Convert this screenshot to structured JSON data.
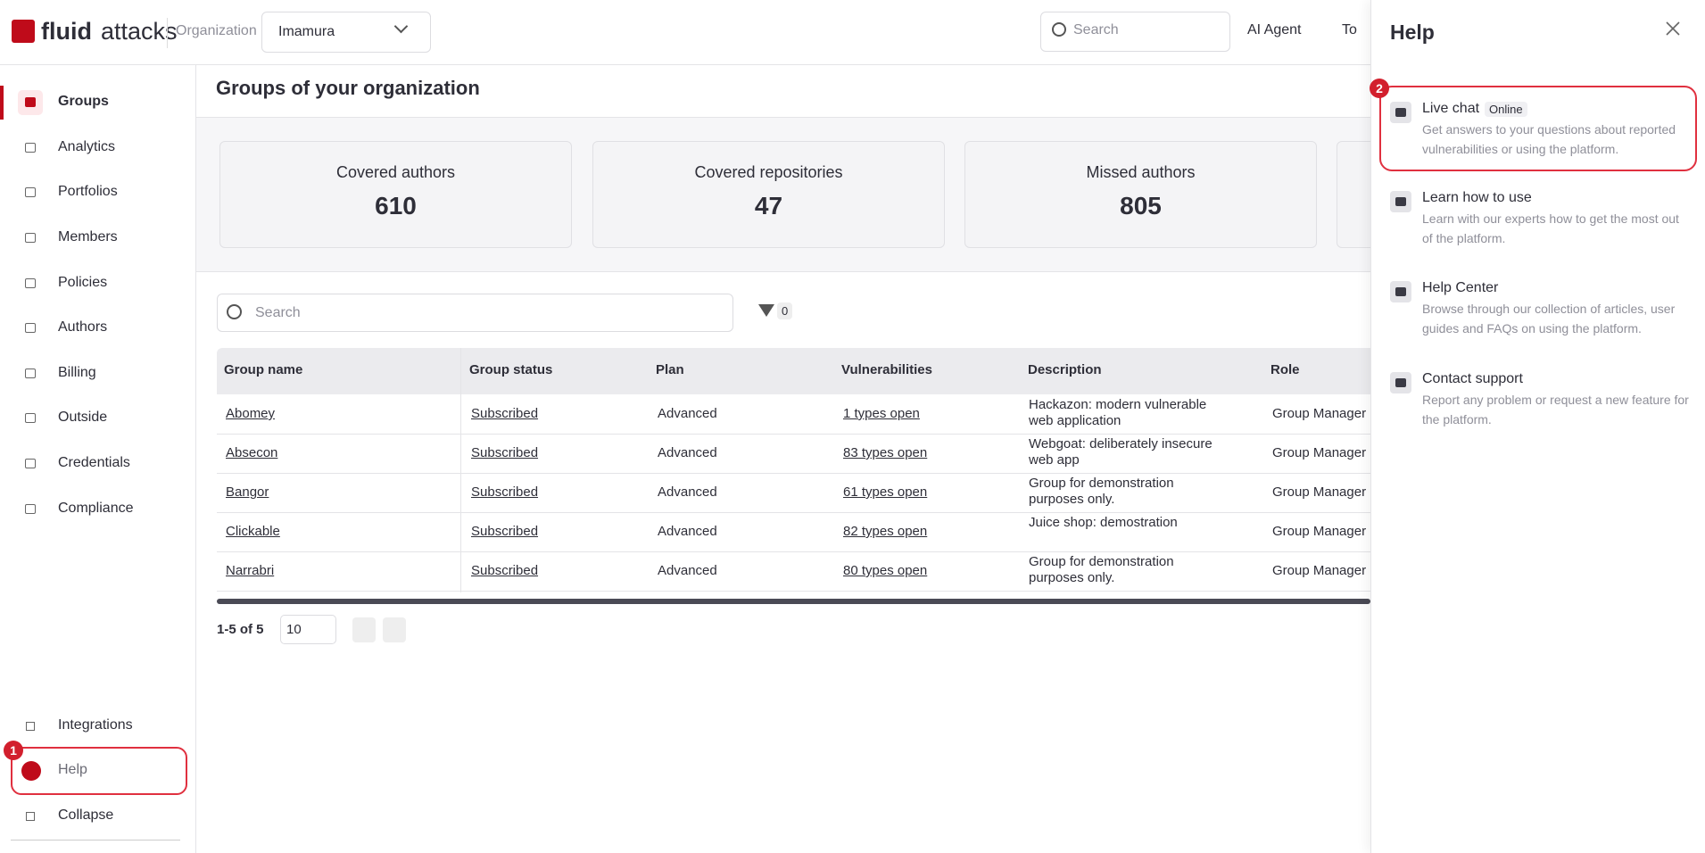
{
  "header": {
    "logo_a": "fluid",
    "logo_b": "attacks",
    "org_label": "Organization",
    "org_select": "Imamura",
    "search": "Search",
    "ai_agent": "AI Agent",
    "todo": "To"
  },
  "sidebar": {
    "items": [
      "Groups",
      "Analytics",
      "Portfolios",
      "Members",
      "Policies",
      "Authors",
      "Billing",
      "Outside",
      "Credentials",
      "Compliance"
    ],
    "bottom": [
      "Integrations",
      "Help",
      "Collapse"
    ],
    "badge": "1"
  },
  "main": {
    "title": "Groups of your organization",
    "cards": [
      {
        "label": "Covered authors",
        "value": "610"
      },
      {
        "label": "Covered repositories",
        "value": "47"
      },
      {
        "label": "Missed authors",
        "value": "805"
      }
    ],
    "search": "Search",
    "filter_count": "0",
    "table": {
      "columns": [
        "Group name",
        "Group status",
        "Plan",
        "Vulnerabilities",
        "Description",
        "Role"
      ],
      "rows": [
        [
          "Abomey",
          "Subscribed",
          "Advanced",
          "1 types open",
          "Hackazon: modern vulnerable web application",
          "Group Manager"
        ],
        [
          "Absecon",
          "Subscribed",
          "Advanced",
          "83 types open",
          "Webgoat: deliberately insecure web app",
          "Group Manager"
        ],
        [
          "Bangor",
          "Subscribed",
          "Advanced",
          "61 types open",
          "Group for demonstration purposes only.",
          "Group Manager"
        ],
        [
          "Clickable",
          "Subscribed",
          "Advanced",
          "82 types open",
          "Juice shop: demostration",
          "Group Manager"
        ],
        [
          "Narrabri",
          "Subscribed",
          "Advanced",
          "80 types open",
          "Group for demonstration purposes only.",
          "Group Manager"
        ]
      ]
    },
    "pagination": {
      "range": "1-5 of 5",
      "page_size": "10"
    }
  },
  "help_panel": {
    "title": "Help",
    "badge": "2",
    "status": "Online",
    "items": [
      {
        "title": "Live chat",
        "desc": "Get answers to your questions about reported vulnerabilities or using the platform."
      },
      {
        "title": "Learn how to use",
        "desc": "Learn with our experts how to get the most out of the platform."
      },
      {
        "title": "Help Center",
        "desc": "Browse through our collection of articles, user guides and FAQs on using the platform."
      },
      {
        "title": "Contact support",
        "desc": "Report any problem or request a new feature for the platform."
      }
    ]
  }
}
